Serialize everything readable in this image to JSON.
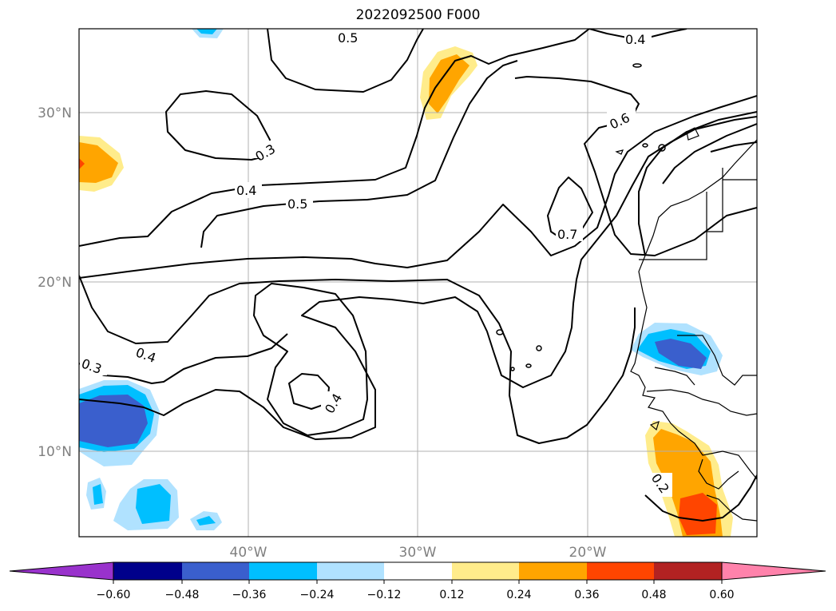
{
  "title": "2022092500 F000",
  "map": {
    "lon_labels": [
      "40°W",
      "30°W",
      "20°W"
    ],
    "lat_labels": [
      "30°N",
      "20°N",
      "10°N"
    ],
    "contour_labels": [
      "0.5",
      "0.4",
      "0.3",
      "0.4",
      "0.5",
      "0.6",
      "0.7",
      "0.4",
      "0.3",
      "0.4",
      "0.2"
    ]
  },
  "colorbar": {
    "tick_labels": [
      "−0.60",
      "−0.48",
      "−0.36",
      "−0.24",
      "−0.12",
      "0.12",
      "0.24",
      "0.36",
      "0.48",
      "0.60"
    ],
    "colors": [
      "#9932cc",
      "#00008b",
      "#3a5fcd",
      "#00bfff",
      "#b0e2ff",
      "#ffffff",
      "#ffec8b",
      "#ffa500",
      "#ff4500",
      "#b22222",
      "#ff82ab"
    ]
  }
}
